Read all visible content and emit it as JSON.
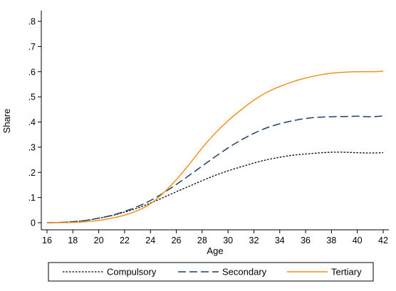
{
  "chart_data": {
    "type": "line",
    "xlabel": "Age",
    "ylabel": "Share",
    "xlim": [
      16,
      42
    ],
    "ylim": [
      0,
      0.8
    ],
    "x_ticks": [
      16,
      18,
      20,
      22,
      24,
      26,
      28,
      30,
      32,
      34,
      36,
      38,
      40,
      42
    ],
    "y_ticks": [
      0,
      0.1,
      0.2,
      0.3,
      0.4,
      0.5,
      0.6,
      0.7,
      0.8
    ],
    "y_tick_labels": [
      "0",
      ".1",
      ".2",
      ".3",
      ".4",
      ".5",
      ".6",
      ".7",
      ".8"
    ],
    "grid": false,
    "legend_position": "bottom",
    "x": [
      16,
      17,
      18,
      19,
      20,
      21,
      22,
      23,
      24,
      25,
      26,
      27,
      28,
      29,
      30,
      31,
      32,
      33,
      34,
      35,
      36,
      37,
      38,
      39,
      40,
      41,
      42
    ],
    "series": [
      {
        "name": "Compulsory",
        "color": "#000000",
        "dash": "dotted",
        "values": [
          0.0,
          0.001,
          0.004,
          0.009,
          0.018,
          0.028,
          0.042,
          0.058,
          0.078,
          0.1,
          0.123,
          0.145,
          0.167,
          0.188,
          0.206,
          0.222,
          0.237,
          0.25,
          0.26,
          0.268,
          0.273,
          0.277,
          0.28,
          0.28,
          0.278,
          0.277,
          0.278
        ]
      },
      {
        "name": "Secondary",
        "color": "#1f3f6b",
        "dash": "longdash",
        "values": [
          0.0,
          0.001,
          0.004,
          0.009,
          0.018,
          0.029,
          0.045,
          0.064,
          0.088,
          0.118,
          0.152,
          0.188,
          0.225,
          0.262,
          0.297,
          0.328,
          0.355,
          0.377,
          0.393,
          0.405,
          0.414,
          0.419,
          0.421,
          0.422,
          0.423,
          0.421,
          0.424
        ]
      },
      {
        "name": "Tertiary",
        "color": "#f0921e",
        "dash": "solid",
        "values": [
          0.0,
          0.0,
          0.001,
          0.004,
          0.009,
          0.018,
          0.03,
          0.048,
          0.075,
          0.118,
          0.171,
          0.232,
          0.297,
          0.355,
          0.405,
          0.448,
          0.487,
          0.518,
          0.541,
          0.56,
          0.575,
          0.586,
          0.594,
          0.598,
          0.6,
          0.6,
          0.602
        ]
      }
    ]
  }
}
